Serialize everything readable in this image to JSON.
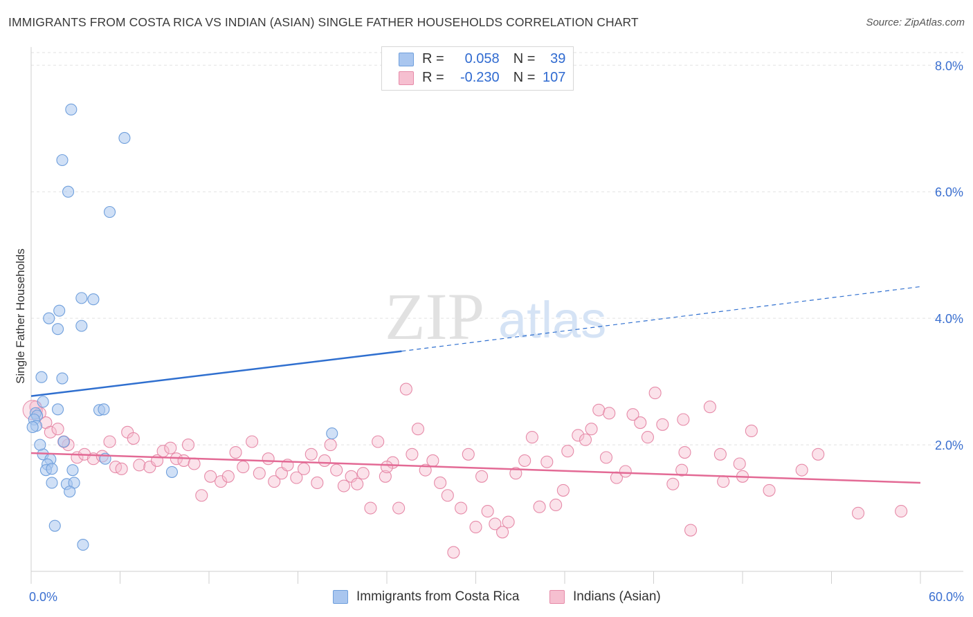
{
  "title": "IMMIGRANTS FROM COSTA RICA VS INDIAN (ASIAN) SINGLE FATHER HOUSEHOLDS CORRELATION CHART",
  "source": "Source: ZipAtlas.com",
  "watermark": {
    "zip": "ZIP",
    "atlas": "atlas"
  },
  "legend": {
    "r_label": "R =",
    "n_label": "N =",
    "rows": [
      {
        "r": "0.058",
        "n": "39"
      },
      {
        "r": "-0.230",
        "n": "107"
      }
    ]
  },
  "bottom_legend": [
    "Immigrants from Costa Rica",
    "Indians (Asian)"
  ],
  "colors": {
    "blue_fill": "#a9c6ef",
    "blue_stroke": "#6f9fdc",
    "blue_line": "#2f6fcf",
    "pink_fill": "#f6bfd0",
    "pink_stroke": "#e68aa8",
    "pink_line": "#e36a95",
    "axis_text": "#3a6fd0"
  },
  "chart_data": {
    "type": "scatter",
    "title": "IMMIGRANTS FROM COSTA RICA VS INDIAN (ASIAN) SINGLE FATHER HOUSEHOLDS CORRELATION CHART",
    "xlabel": "",
    "ylabel": "Single Father Households",
    "xlim": [
      0,
      60
    ],
    "ylim": [
      0,
      8.2
    ],
    "x_tick_labels": [
      "0.0%",
      "60.0%"
    ],
    "y_ticks": [
      2,
      4,
      6,
      8
    ],
    "y_tick_labels": [
      "2.0%",
      "4.0%",
      "6.0%",
      "8.0%"
    ],
    "series": [
      {
        "name": "Immigrants from Costa Rica",
        "r": 0.058,
        "n": 39,
        "trend": {
          "x0": 0,
          "y0": 2.77,
          "x_solid_end": 25,
          "y_solid_end": 3.48,
          "x1": 60,
          "y1": 4.5
        },
        "points": [
          [
            2.7,
            7.3
          ],
          [
            6.3,
            6.85
          ],
          [
            2.1,
            6.5
          ],
          [
            2.5,
            6.0
          ],
          [
            5.3,
            5.68
          ],
          [
            3.4,
            4.32
          ],
          [
            4.2,
            4.3
          ],
          [
            1.9,
            4.12
          ],
          [
            1.2,
            4.0
          ],
          [
            1.8,
            3.83
          ],
          [
            3.4,
            3.88
          ],
          [
            0.7,
            3.07
          ],
          [
            2.1,
            3.05
          ],
          [
            0.8,
            2.68
          ],
          [
            1.8,
            2.56
          ],
          [
            4.6,
            2.55
          ],
          [
            4.9,
            2.56
          ],
          [
            0.3,
            2.5
          ],
          [
            0.4,
            2.46
          ],
          [
            0.2,
            2.4
          ],
          [
            0.35,
            2.3
          ],
          [
            0.1,
            2.28
          ],
          [
            20.3,
            2.18
          ],
          [
            2.2,
            2.05
          ],
          [
            0.8,
            1.85
          ],
          [
            1.3,
            1.77
          ],
          [
            5.0,
            1.78
          ],
          [
            1.1,
            1.69
          ],
          [
            1.0,
            1.6
          ],
          [
            1.4,
            1.62
          ],
          [
            2.8,
            1.6
          ],
          [
            9.5,
            1.57
          ],
          [
            1.4,
            1.4
          ],
          [
            2.4,
            1.38
          ],
          [
            2.9,
            1.4
          ],
          [
            2.6,
            1.26
          ],
          [
            1.6,
            0.72
          ],
          [
            3.5,
            0.42
          ],
          [
            0.6,
            2.0
          ]
        ]
      },
      {
        "name": "Indians (Asian)",
        "r": -0.23,
        "n": 107,
        "trend": {
          "x0": 0,
          "y0": 1.87,
          "x1": 60,
          "y1": 1.4
        },
        "points": [
          [
            0.3,
            2.6
          ],
          [
            0.6,
            2.5
          ],
          [
            1.0,
            2.35
          ],
          [
            1.3,
            2.2
          ],
          [
            1.8,
            2.25
          ],
          [
            2.5,
            2.0
          ],
          [
            2.2,
            2.05
          ],
          [
            3.1,
            1.8
          ],
          [
            3.6,
            1.85
          ],
          [
            4.2,
            1.78
          ],
          [
            4.8,
            1.82
          ],
          [
            5.3,
            2.05
          ],
          [
            5.7,
            1.65
          ],
          [
            6.1,
            1.62
          ],
          [
            6.5,
            2.2
          ],
          [
            6.9,
            2.1
          ],
          [
            7.3,
            1.68
          ],
          [
            8.0,
            1.65
          ],
          [
            8.5,
            1.75
          ],
          [
            8.9,
            1.9
          ],
          [
            9.4,
            1.95
          ],
          [
            9.8,
            1.78
          ],
          [
            10.3,
            1.75
          ],
          [
            10.6,
            2.0
          ],
          [
            11.0,
            1.7
          ],
          [
            11.5,
            1.2
          ],
          [
            12.1,
            1.5
          ],
          [
            12.8,
            1.42
          ],
          [
            13.3,
            1.5
          ],
          [
            13.8,
            1.88
          ],
          [
            14.3,
            1.65
          ],
          [
            14.9,
            2.05
          ],
          [
            15.4,
            1.55
          ],
          [
            16.0,
            1.78
          ],
          [
            16.4,
            1.42
          ],
          [
            16.9,
            1.55
          ],
          [
            17.3,
            1.68
          ],
          [
            17.9,
            1.48
          ],
          [
            18.4,
            1.62
          ],
          [
            18.9,
            1.85
          ],
          [
            19.3,
            1.4
          ],
          [
            19.8,
            1.75
          ],
          [
            20.2,
            2.0
          ],
          [
            20.6,
            1.6
          ],
          [
            21.1,
            1.35
          ],
          [
            21.6,
            1.5
          ],
          [
            22.0,
            1.38
          ],
          [
            22.4,
            1.55
          ],
          [
            22.9,
            1.0
          ],
          [
            23.4,
            2.05
          ],
          [
            23.9,
            1.5
          ],
          [
            24.4,
            1.72
          ],
          [
            24.8,
            1.0
          ],
          [
            25.3,
            2.88
          ],
          [
            25.7,
            1.85
          ],
          [
            26.1,
            2.25
          ],
          [
            26.6,
            1.6
          ],
          [
            27.1,
            1.75
          ],
          [
            27.6,
            1.4
          ],
          [
            28.1,
            1.2
          ],
          [
            28.5,
            0.3
          ],
          [
            29.0,
            1.0
          ],
          [
            29.5,
            1.85
          ],
          [
            30.0,
            0.7
          ],
          [
            30.4,
            1.5
          ],
          [
            30.8,
            0.95
          ],
          [
            31.3,
            0.75
          ],
          [
            31.8,
            0.62
          ],
          [
            32.2,
            0.78
          ],
          [
            32.7,
            1.55
          ],
          [
            33.3,
            1.75
          ],
          [
            33.8,
            2.12
          ],
          [
            34.3,
            1.02
          ],
          [
            34.8,
            1.73
          ],
          [
            35.4,
            1.05
          ],
          [
            35.9,
            1.28
          ],
          [
            36.9,
            2.15
          ],
          [
            37.4,
            2.08
          ],
          [
            37.8,
            2.25
          ],
          [
            38.3,
            2.55
          ],
          [
            38.8,
            1.8
          ],
          [
            39.5,
            1.48
          ],
          [
            40.1,
            1.58
          ],
          [
            40.6,
            2.48
          ],
          [
            41.1,
            2.35
          ],
          [
            41.6,
            2.12
          ],
          [
            42.1,
            2.82
          ],
          [
            42.6,
            2.32
          ],
          [
            43.3,
            1.38
          ],
          [
            43.9,
            1.6
          ],
          [
            44.5,
            0.65
          ],
          [
            44.1,
            1.88
          ],
          [
            45.8,
            2.6
          ],
          [
            46.5,
            1.85
          ],
          [
            46.7,
            1.42
          ],
          [
            47.8,
            1.7
          ],
          [
            48.6,
            2.22
          ],
          [
            49.8,
            1.28
          ],
          [
            53.1,
            1.85
          ],
          [
            55.8,
            0.92
          ],
          [
            58.7,
            0.95
          ],
          [
            48.0,
            1.5
          ],
          [
            52.0,
            1.6
          ],
          [
            36.2,
            1.9
          ],
          [
            24.0,
            1.65
          ],
          [
            44.0,
            2.4
          ],
          [
            39.0,
            2.5
          ]
        ]
      }
    ]
  }
}
